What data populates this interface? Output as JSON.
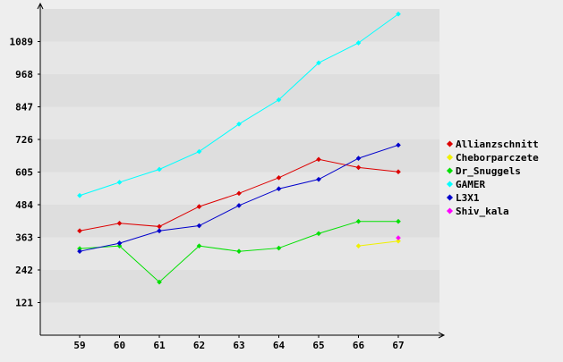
{
  "chart_data": {
    "type": "line",
    "title": "",
    "xlabel": "",
    "ylabel": "",
    "x": [
      59,
      60,
      61,
      62,
      63,
      64,
      65,
      66,
      67
    ],
    "ylim": [
      0,
      1210
    ],
    "yticks": [
      121,
      242,
      363,
      484,
      605,
      726,
      847,
      968,
      1089
    ],
    "grid": "horizontal bands",
    "legend": "right",
    "series": [
      {
        "name": "Allianzschnitt",
        "color": "#dd0000",
        "values": [
          387,
          415,
          403,
          477,
          526,
          584,
          652,
          622,
          606
        ]
      },
      {
        "name": "Cheborparczete",
        "color": "#f0f000",
        "values": [
          null,
          null,
          null,
          null,
          null,
          null,
          null,
          331,
          349
        ]
      },
      {
        "name": "Dr_Snuggels",
        "color": "#00e000",
        "values": [
          321,
          331,
          197,
          331,
          311,
          323,
          377,
          422,
          422
        ]
      },
      {
        "name": "GAMER",
        "color": "#00ffff",
        "values": [
          518,
          567,
          615,
          681,
          783,
          873,
          1010,
          1084,
          1191
        ]
      },
      {
        "name": "L3X1",
        "color": "#0000cc",
        "values": [
          311,
          341,
          387,
          406,
          481,
          543,
          578,
          656,
          705
        ]
      },
      {
        "name": "Shiv_kala",
        "color": "#ff00ff",
        "values": [
          null,
          null,
          null,
          null,
          null,
          null,
          null,
          null,
          361
        ]
      }
    ]
  }
}
